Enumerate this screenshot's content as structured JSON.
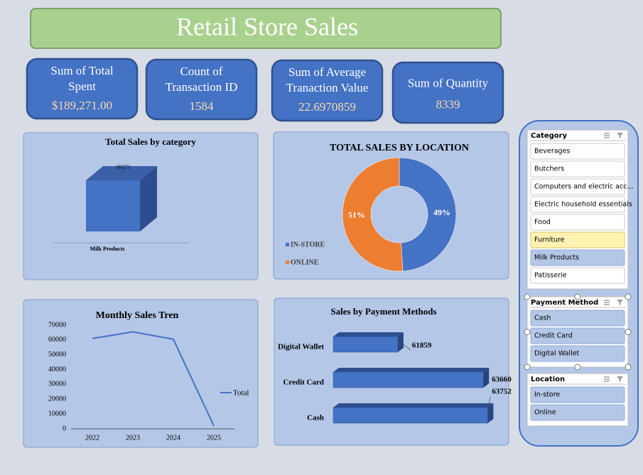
{
  "header": {
    "title": "Retail Store Sales"
  },
  "kpis": [
    {
      "label": [
        "Sum of Total",
        "Spent"
      ],
      "value": "$189,271.00"
    },
    {
      "label": [
        "Count of",
        "Transaction ID"
      ],
      "value": 1584
    },
    {
      "label": [
        "Sum of Average",
        "Tranaction Value"
      ],
      "value": 22.6970859
    },
    {
      "label": [
        "Sum of Quantity"
      ],
      "value": 8339
    }
  ],
  "chart_data": [
    {
      "type": "bar",
      "title": "Total Sales by category",
      "categories": [
        "Milk Products"
      ],
      "values": [
        189271
      ],
      "color": "#4472c4"
    },
    {
      "type": "donut",
      "title": "TOTAL SALES BY LOCATION",
      "categories": [
        "IN-STORE",
        "ONLINE"
      ],
      "values": [
        49,
        51
      ],
      "value_labels": [
        "49%",
        "51%"
      ],
      "colors": [
        "#4472c4",
        "#ed7d31"
      ],
      "legend": "left"
    },
    {
      "type": "line",
      "title": "Monthly Sales Tren",
      "categories": [
        "2022",
        "2023",
        "2024",
        "2025"
      ],
      "series": [
        {
          "name": "Total",
          "color": "#4472c4",
          "values": [
            61000,
            65500,
            60500,
            2000
          ]
        }
      ],
      "ylim": [
        0,
        70000
      ],
      "yticks": [
        0,
        10000,
        20000,
        30000,
        40000,
        50000,
        60000,
        70000
      ],
      "legend": "right"
    },
    {
      "type": "bar",
      "horizontal": true,
      "title": "Sales by Payment Methods",
      "categories": [
        "Digital Wallet",
        "Credit Card",
        "Cash"
      ],
      "values": [
        61859,
        63660,
        63752
      ],
      "color": "#4472c4",
      "xlim": [
        60500,
        64000
      ]
    }
  ],
  "slicers": [
    {
      "title": "Category",
      "items": [
        "Beverages",
        "Butchers",
        "Computers and electric acc...",
        "Electric household essentials",
        "Food",
        "Furniture",
        "Milk Products",
        "Patisserie"
      ]
    },
    {
      "title": "Payment Method",
      "items": [
        "Cash",
        "Credit Card",
        "Digital Wallet"
      ]
    },
    {
      "title": "Location",
      "items": [
        "In-store",
        "Online"
      ]
    }
  ]
}
